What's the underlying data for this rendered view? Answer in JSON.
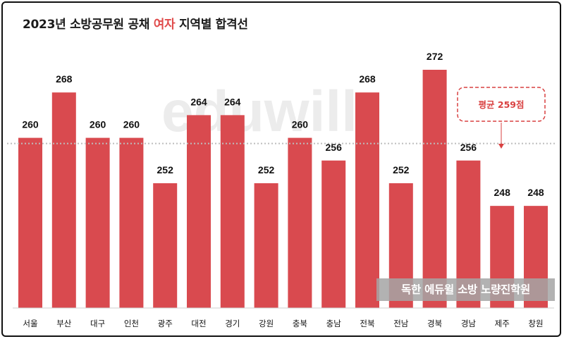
{
  "title": {
    "prefix": "2023년 소방공무원 공채 ",
    "highlight": "여자",
    "suffix": " 지역별 합격선"
  },
  "watermark": "eduwill",
  "average": {
    "label": "평균 259점",
    "value": 259
  },
  "promo": "독한 에듀윌 소방 노량진학원",
  "colors": {
    "bar": "#d94a4f",
    "avg_line": "#bdbdbd",
    "avg_box": "#d94141",
    "highlight": "#e04b4b"
  },
  "chart_data": {
    "type": "bar",
    "title": "2023년 소방공무원 공채 여자 지역별 합격선",
    "categories": [
      "서울",
      "부산",
      "대구",
      "인천",
      "광주",
      "대전",
      "경기",
      "강원",
      "충북",
      "충남",
      "전북",
      "전남",
      "경북",
      "경남",
      "제주",
      "창원"
    ],
    "values": [
      260,
      268,
      260,
      260,
      252,
      264,
      264,
      252,
      260,
      256,
      268,
      252,
      272,
      256,
      248,
      248
    ],
    "ylim": [
      230,
      275
    ],
    "average_line": 259,
    "grid": false,
    "legend": "none"
  }
}
